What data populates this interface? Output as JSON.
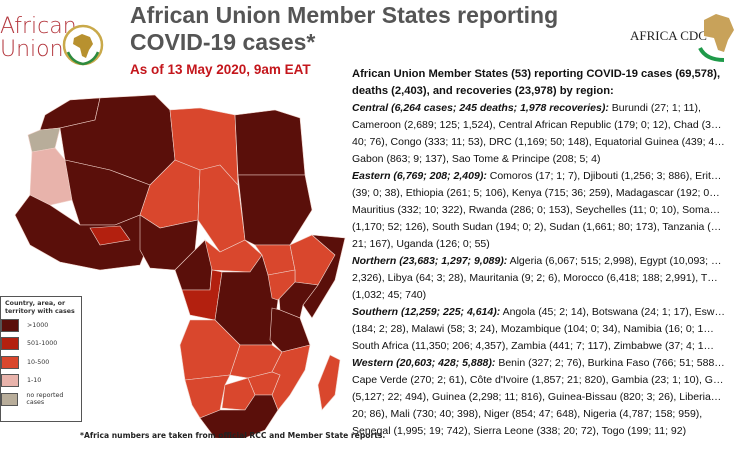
{
  "logos": {
    "african_union": "African Union",
    "au_line1": "African",
    "au_line2": "Union",
    "africa_cdc": "AFRICA CDC"
  },
  "header": {
    "title": "African Union Member States reporting COVID-19 cases*",
    "subtitle": "As of 13 May 2020, 9am EAT"
  },
  "summary": {
    "intro": "African Union Member States (53) reporting COVID-19 cases (69,578), deaths (2,403), and recoveries (23,978) by region:",
    "regions": [
      {
        "heading": "Central (6,264 cases; 245 deaths; 1,978 recoveries):",
        "text": "Burundi (27; 1; 11), Cameroon (2,689; 125; 1,524), Central African Republic (179; 0; 12), Chad (3… 40; 76), Congo (333; 11; 53), DRC (1,169; 50; 148), Equatorial Guinea (439; 4… Gabon (863; 9; 137), Sao Tome & Principe (208; 5; 4)"
      },
      {
        "heading": "Eastern (6,769; 208; 2,409):",
        "text": "Comoros (17; 1; 7), Djibouti (1,256; 3; 886), Erit… (39; 0; 38), Ethiopia (261; 5; 106), Kenya (715; 36; 259), Madagascar (192; 0… Mauritius (332; 10; 322), Rwanda (286; 0; 153), Seychelles (11; 0; 10), Soma… (1,170; 52; 126), South Sudan (194; 0; 2), Sudan (1,661; 80; 173), Tanzania (… 21; 167), Uganda (126; 0; 55)"
      },
      {
        "heading": "Northern (23,683; 1,297; 9,089):",
        "text": "Algeria (6,067; 515; 2,998), Egypt (10,093; … 2,326), Libya (64; 3; 28), Mauritania (9; 2; 6), Morocco (6,418; 188; 2,991), T… (1,032; 45; 740)"
      },
      {
        "heading": "Southern (12,259; 225; 4,614):",
        "text": "Angola (45; 2; 14), Botswana (24; 1; 17), Esw… (184; 2; 28), Malawi (58; 3; 24), Mozambique (104; 0; 34), Namibia (16; 0; 1… South Africa (11,350; 206; 4,357), Zambia (441; 7; 117), Zimbabwe (37; 4; 1…"
      },
      {
        "heading": "Western (20,603; 428; 5,888):",
        "text": "Benin (327; 2; 76), Burkina Faso (766; 51; 588… Cape Verde (270; 2; 61), Côte d'Ivoire (1,857; 21; 820), Gambia (23; 1; 10), G… (5,127; 22; 494), Guinea (2,298; 11; 816), Guinea-Bissau (820; 3; 26), Liberia… 20; 86), Mali (730; 40; 398), Niger (854; 47; 648), Nigeria (4,787; 158; 959), Senegal (1,995; 19; 742), Sierra Leone (338; 20; 72), Togo (199; 11; 92)"
      }
    ]
  },
  "legend": {
    "title": "Country, area, or territory with cases",
    "items": [
      {
        "label": ">1000",
        "color": "#5a0f0a"
      },
      {
        "label": "501-1000",
        "color": "#b3200f"
      },
      {
        "label": "10-500",
        "color": "#d9472d"
      },
      {
        "label": "1-10",
        "color": "#e8b3ab"
      },
      {
        "label": "no reported cases",
        "color": "#b8ad9a"
      }
    ]
  },
  "footnote": "*Africa numbers are taken from official RCC and Member State reports."
}
